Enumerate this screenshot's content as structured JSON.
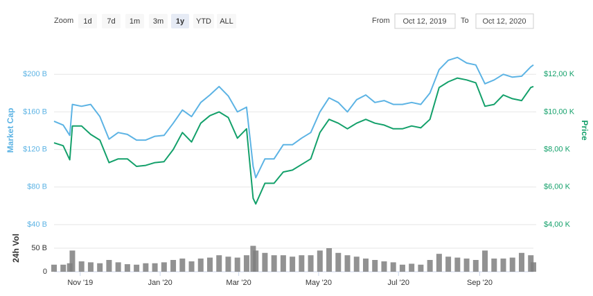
{
  "toolbar": {
    "zoom_label": "Zoom",
    "buttons": [
      "1d",
      "7d",
      "1m",
      "3m",
      "1y",
      "YTD",
      "ALL"
    ],
    "selected": 4,
    "from_label": "From",
    "from": "Oct 12, 2019",
    "to_label": "To",
    "to": "Oct 12, 2020"
  },
  "chart_data": {
    "type": "line",
    "x": [
      "2019-10-12",
      "2019-10-19",
      "2019-10-24",
      "2019-10-26",
      "2019-11-02",
      "2019-11-09",
      "2019-11-16",
      "2019-11-23",
      "2019-11-30",
      "2019-12-07",
      "2019-12-14",
      "2019-12-21",
      "2019-12-28",
      "2020-01-04",
      "2020-01-11",
      "2020-01-18",
      "2020-01-25",
      "2020-02-01",
      "2020-02-08",
      "2020-02-15",
      "2020-02-22",
      "2020-02-29",
      "2020-03-07",
      "2020-03-12",
      "2020-03-14",
      "2020-03-21",
      "2020-03-28",
      "2020-04-04",
      "2020-04-11",
      "2020-04-18",
      "2020-04-25",
      "2020-05-02",
      "2020-05-09",
      "2020-05-16",
      "2020-05-23",
      "2020-05-30",
      "2020-06-06",
      "2020-06-13",
      "2020-06-20",
      "2020-06-27",
      "2020-07-04",
      "2020-07-11",
      "2020-07-18",
      "2020-07-25",
      "2020-08-01",
      "2020-08-08",
      "2020-08-15",
      "2020-08-22",
      "2020-08-29",
      "2020-09-05",
      "2020-09-12",
      "2020-09-19",
      "2020-09-26",
      "2020-10-03",
      "2020-10-10",
      "2020-10-12"
    ],
    "xlim": [
      "2019-10-12",
      "2020-10-12"
    ],
    "xticks": [
      {
        "value": "2019-11-01",
        "label": "Nov '19"
      },
      {
        "value": "2020-01-01",
        "label": "Jan '20"
      },
      {
        "value": "2020-03-01",
        "label": "Mar '20"
      },
      {
        "value": "2020-05-01",
        "label": "May '20"
      },
      {
        "value": "2020-07-01",
        "label": "Jul '20"
      },
      {
        "value": "2020-09-01",
        "label": "Sep '20"
      }
    ],
    "series": [
      {
        "name": "Market Cap",
        "color": "#5cb3e4",
        "values": [
          150,
          146,
          135,
          168,
          166,
          168,
          155,
          131,
          138,
          136,
          130,
          130,
          134,
          135,
          148,
          162,
          155,
          170,
          178,
          187,
          177,
          160,
          165,
          102,
          90,
          110,
          110,
          125,
          125,
          132,
          138,
          160,
          175,
          170,
          160,
          173,
          178,
          170,
          172,
          168,
          168,
          170,
          168,
          180,
          205,
          215,
          218,
          212,
          210,
          190,
          194,
          200,
          197,
          198,
          208,
          210
        ]
      },
      {
        "name": "Price",
        "color": "#13a06a",
        "axis": "y2",
        "values": [
          8350,
          8200,
          7450,
          9250,
          9250,
          8800,
          8500,
          7300,
          7500,
          7500,
          7100,
          7150,
          7300,
          7350,
          8000,
          8900,
          8400,
          9400,
          9800,
          10000,
          9700,
          8600,
          9100,
          5400,
          5100,
          6200,
          6200,
          6800,
          6900,
          7200,
          7500,
          8900,
          9600,
          9400,
          9100,
          9400,
          9600,
          9400,
          9300,
          9100,
          9100,
          9250,
          9150,
          9600,
          11300,
          11600,
          11800,
          11700,
          11550,
          10300,
          10400,
          10900,
          10700,
          10600,
          11300,
          11350
        ]
      }
    ],
    "ylim": [
      40,
      240
    ],
    "yticks": [
      {
        "value": 40,
        "label": "$40 B"
      },
      {
        "value": 80,
        "label": "$80 B"
      },
      {
        "value": 120,
        "label": "$120 B"
      },
      {
        "value": 160,
        "label": "$160 B"
      },
      {
        "value": 200,
        "label": "$200 B"
      }
    ],
    "y2lim": [
      4000,
      14000
    ],
    "y2ticks": [
      {
        "value": 4000,
        "label": "$4,00 K"
      },
      {
        "value": 6000,
        "label": "$6,00 K"
      },
      {
        "value": 8000,
        "label": "$8,00 K"
      },
      {
        "value": 10000,
        "label": "$10,00 K"
      },
      {
        "value": 12000,
        "label": "$12,00 K"
      }
    ],
    "grid": true,
    "volume": {
      "name": "24h Vol",
      "color": "#7f7f7f",
      "ylim": [
        0,
        100
      ],
      "yticks": [
        0,
        {
          "value": 50,
          "label": "50 B"
        }
      ],
      "values": [
        15,
        15,
        18,
        45,
        22,
        20,
        18,
        25,
        20,
        16,
        15,
        18,
        18,
        20,
        25,
        28,
        22,
        28,
        30,
        35,
        32,
        30,
        35,
        55,
        45,
        40,
        35,
        35,
        32,
        35,
        35,
        45,
        50,
        40,
        35,
        32,
        28,
        25,
        22,
        20,
        15,
        17,
        15,
        25,
        38,
        32,
        30,
        28,
        25,
        45,
        28,
        28,
        30,
        40,
        35,
        20
      ]
    }
  }
}
